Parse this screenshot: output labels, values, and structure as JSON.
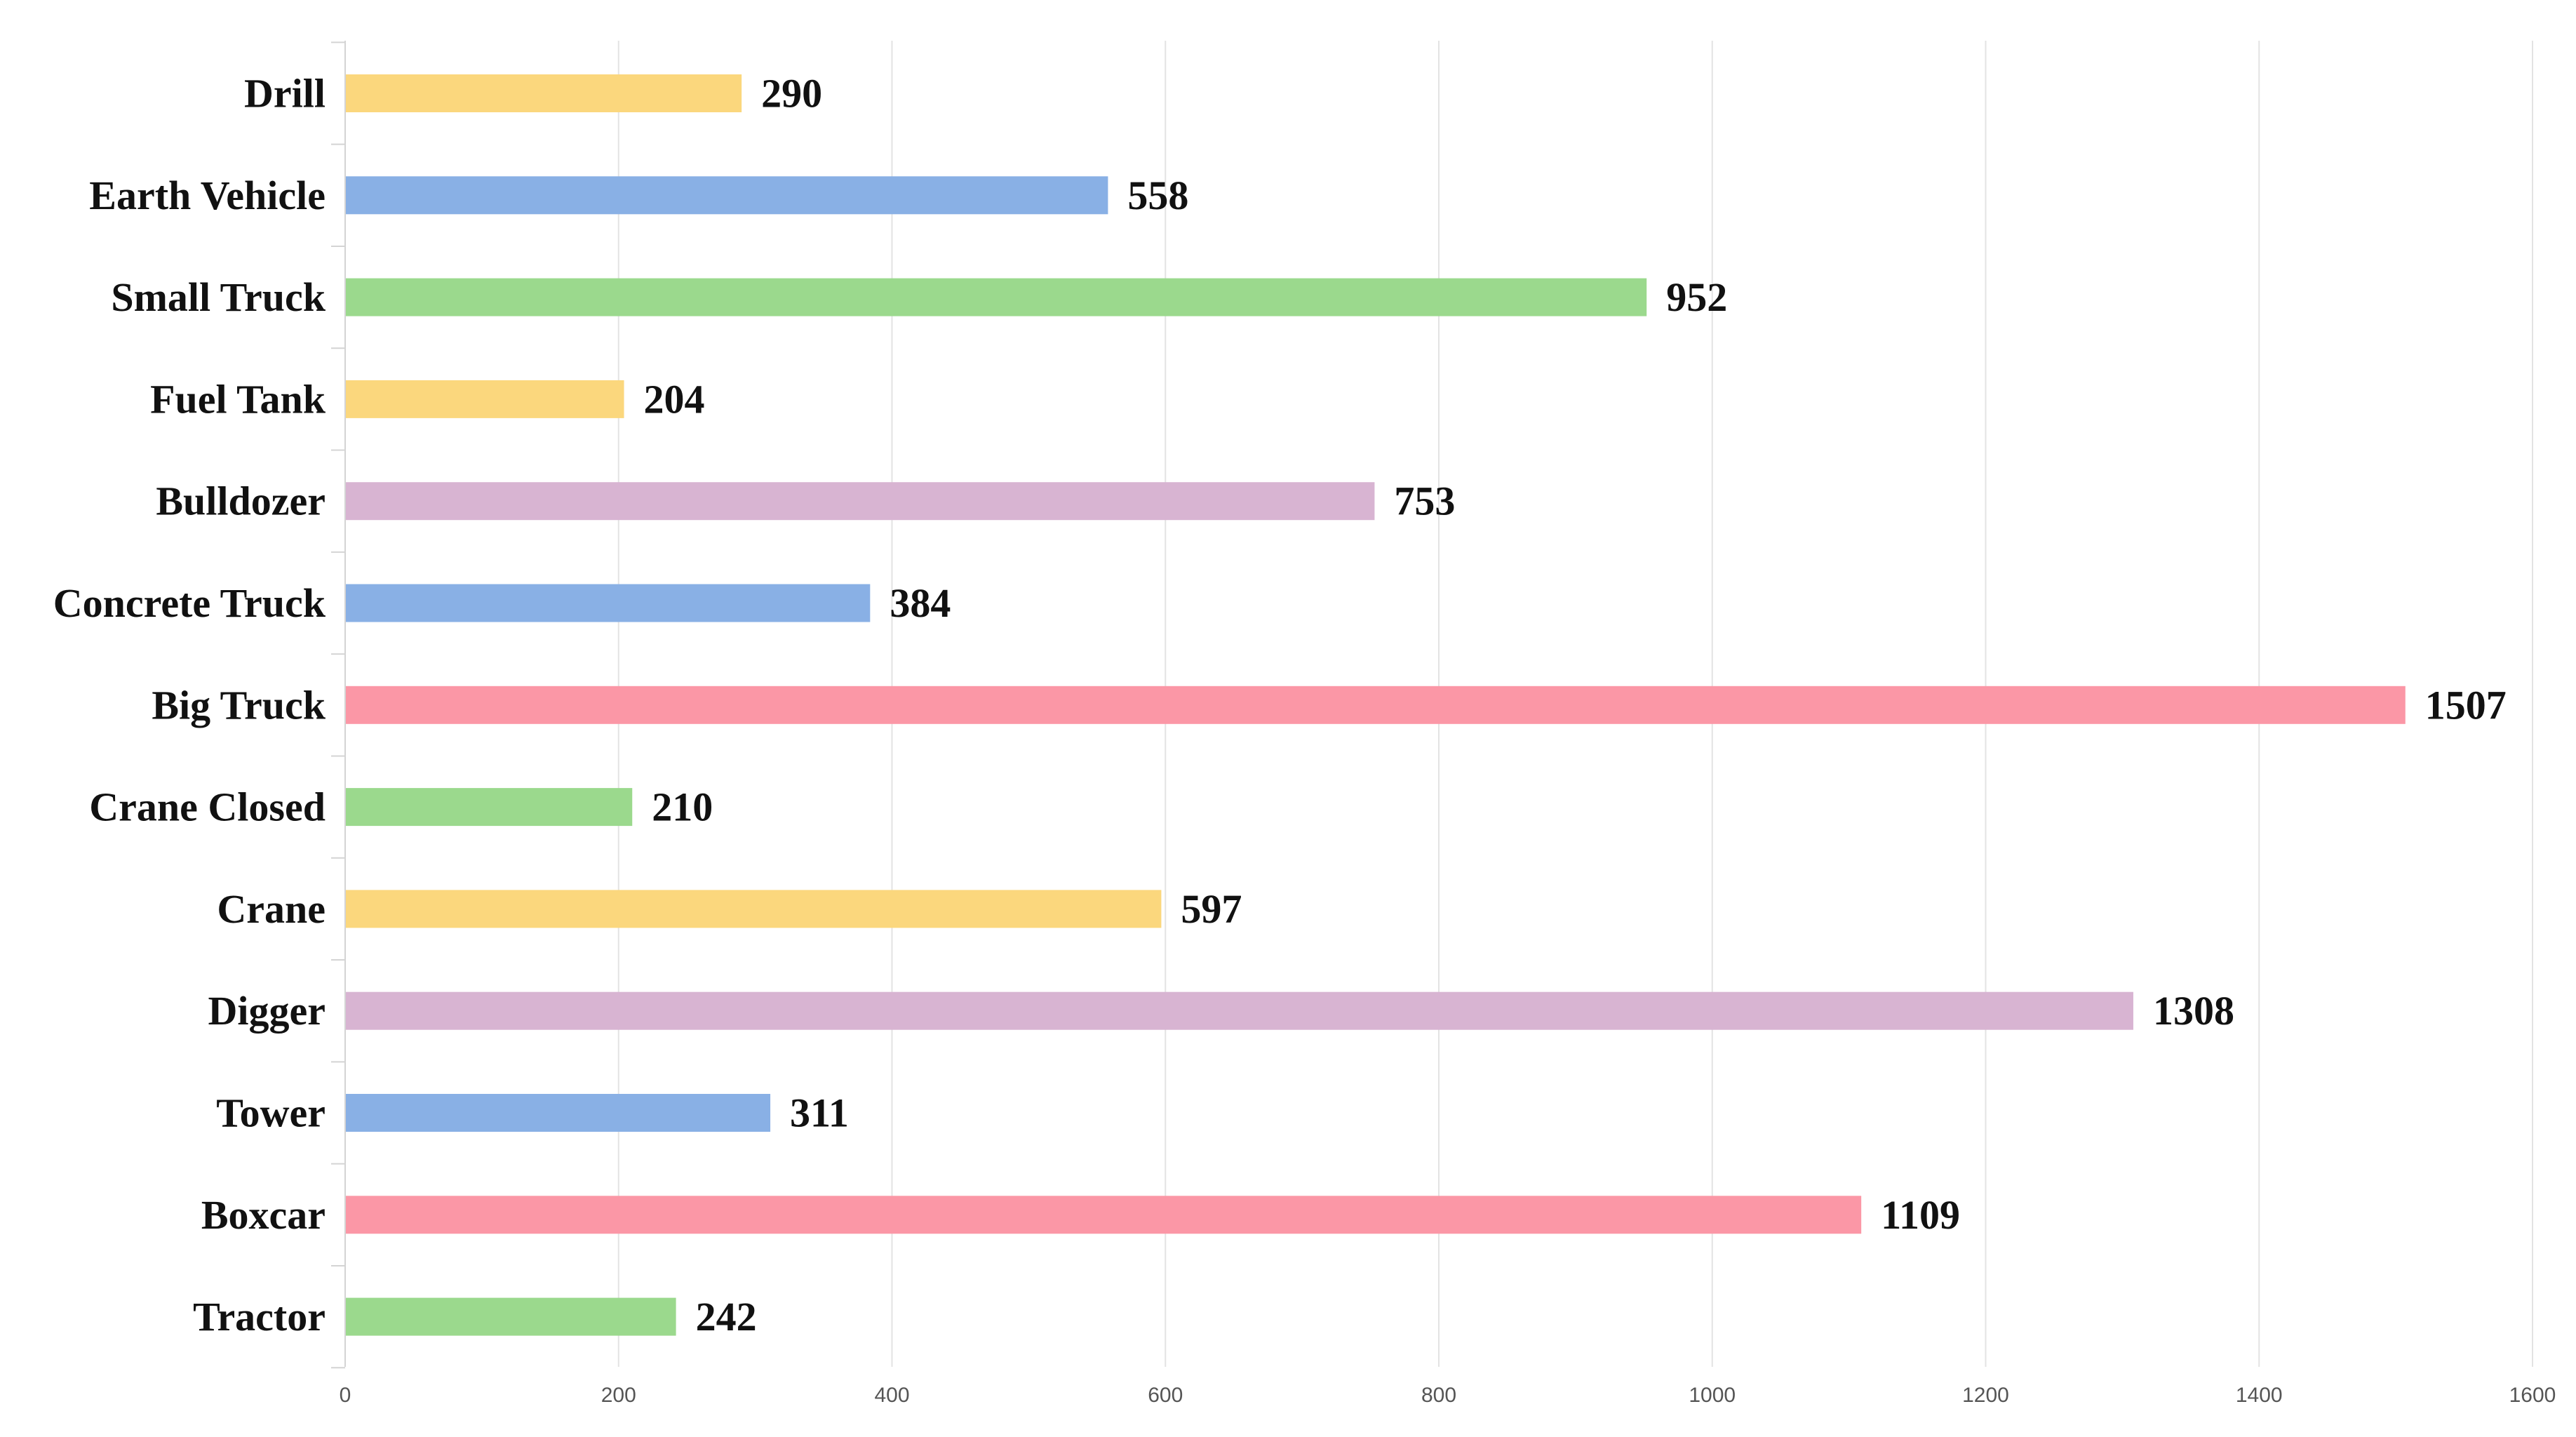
{
  "chart_data": {
    "type": "bar",
    "orientation": "horizontal",
    "title": "",
    "xlabel": "",
    "ylabel": "",
    "categories": [
      "Drill",
      "Earth Vehicle",
      "Small Truck",
      "Fuel Tank",
      "Bulldozer",
      "Concrete Truck",
      "Big Truck",
      "Crane Closed",
      "Crane",
      "Digger",
      "Tower",
      "Boxcar",
      "Tractor"
    ],
    "values": [
      290,
      558,
      952,
      204,
      753,
      384,
      1507,
      210,
      597,
      1308,
      311,
      1109,
      242
    ],
    "value_labels": [
      "290",
      "558",
      "952",
      "204",
      "753",
      "384",
      "1507",
      "210",
      "597",
      "1308",
      "311",
      "1109",
      "242"
    ],
    "bar_colors": [
      "#fbd77d",
      "#89b0e5",
      "#9bd98d",
      "#fbd77d",
      "#d8b4d2",
      "#89b0e5",
      "#fb97a6",
      "#9bd98d",
      "#fbd77d",
      "#d8b4d2",
      "#89b0e5",
      "#fb97a6",
      "#9bd98d"
    ],
    "xlim": [
      0,
      1600
    ],
    "x_ticks": [
      0,
      200,
      400,
      600,
      800,
      1000,
      1200,
      1400,
      1600
    ],
    "x_tick_labels": [
      "0",
      "200",
      "400",
      "600",
      "800",
      "1000",
      "1200",
      "1400",
      "1600"
    ],
    "grid": true,
    "legend": "none"
  }
}
